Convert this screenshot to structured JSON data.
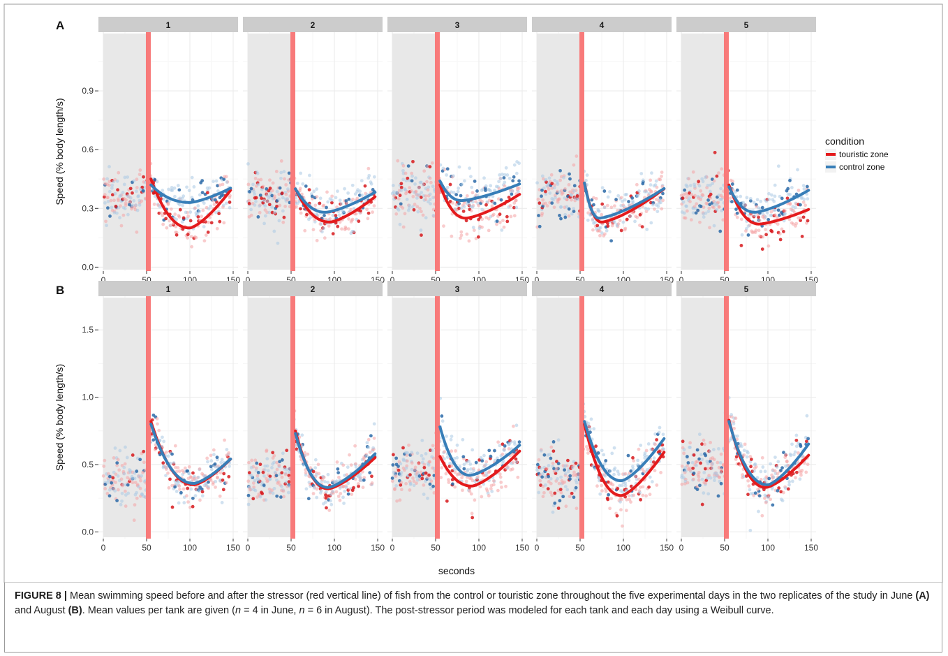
{
  "chart_data": {
    "type": "scatter",
    "facet_label": "seconds",
    "xlabel": "seconds",
    "stressor_x": 52,
    "pre_stressor_shading": [
      0,
      52
    ],
    "x_range": [
      0,
      150
    ],
    "x_ticks": [
      "0",
      "50",
      "100",
      "150"
    ],
    "legend": {
      "title": "condition",
      "placement": "right",
      "entries": [
        {
          "name": "touristic zone",
          "color": "#e41a1c"
        },
        {
          "name": "control zone",
          "color": "#377eb8"
        }
      ]
    },
    "rows": [
      {
        "label": "A",
        "ylabel": "Speed (% body length/s)",
        "ylim": [
          -0.02,
          1.2
        ],
        "y_ticks": [
          "0.0",
          "0.3",
          "0.6",
          "0.9"
        ],
        "y_tick_values": [
          0.0,
          0.3,
          0.6,
          0.9
        ],
        "facets": [
          {
            "day": "1",
            "pre_mean": 0.36,
            "pre_spread": 0.11,
            "touristic_fit": {
              "start": 0.45,
              "min": 0.2,
              "t_min": 100,
              "end": 0.41
            },
            "control_fit": {
              "start": 0.42,
              "min": 0.33,
              "t_min": 100,
              "end": 0.41
            }
          },
          {
            "day": "2",
            "pre_mean": 0.37,
            "pre_spread": 0.11,
            "touristic_fit": {
              "start": 0.4,
              "min": 0.23,
              "t_min": 95,
              "end": 0.37
            },
            "control_fit": {
              "start": 0.4,
              "min": 0.28,
              "t_min": 90,
              "end": 0.39
            }
          },
          {
            "day": "3",
            "pre_mean": 0.38,
            "pre_spread": 0.12,
            "touristic_fit": {
              "start": 0.42,
              "min": 0.25,
              "t_min": 85,
              "end": 0.38
            },
            "control_fit": {
              "start": 0.44,
              "min": 0.34,
              "t_min": 80,
              "end": 0.43
            }
          },
          {
            "day": "4",
            "pre_mean": 0.38,
            "pre_spread": 0.11,
            "touristic_fit": {
              "start": 0.43,
              "min": 0.23,
              "t_min": 75,
              "end": 0.41
            },
            "control_fit": {
              "start": 0.43,
              "min": 0.25,
              "t_min": 72,
              "end": 0.41
            }
          },
          {
            "day": "5",
            "pre_mean": 0.35,
            "pre_spread": 0.11,
            "touristic_fit": {
              "start": 0.42,
              "min": 0.22,
              "t_min": 90,
              "end": 0.3
            },
            "control_fit": {
              "start": 0.41,
              "min": 0.28,
              "t_min": 85,
              "end": 0.4
            }
          }
        ]
      },
      {
        "label": "B",
        "ylabel": "Speed (% body length/s)",
        "ylim": [
          -0.05,
          1.75
        ],
        "y_ticks": [
          "0.0",
          "0.5",
          "1.0",
          "1.5"
        ],
        "y_tick_values": [
          0.0,
          0.5,
          1.0,
          1.5
        ],
        "facets": [
          {
            "day": "1",
            "pre_mean": 0.4,
            "pre_spread": 0.17,
            "touristic_fit": {
              "start": 0.82,
              "min": 0.35,
              "t_min": 105,
              "end": 0.56
            },
            "control_fit": {
              "start": 0.8,
              "min": 0.36,
              "t_min": 105,
              "end": 0.56
            }
          },
          {
            "day": "2",
            "pre_mean": 0.4,
            "pre_spread": 0.15,
            "touristic_fit": {
              "start": 0.75,
              "min": 0.32,
              "t_min": 93,
              "end": 0.57
            },
            "control_fit": {
              "start": 0.73,
              "min": 0.33,
              "t_min": 93,
              "end": 0.6
            }
          },
          {
            "day": "3",
            "pre_mean": 0.45,
            "pre_spread": 0.17,
            "touristic_fit": {
              "start": 0.56,
              "min": 0.34,
              "t_min": 92,
              "end": 0.62
            },
            "control_fit": {
              "start": 0.78,
              "min": 0.42,
              "t_min": 90,
              "end": 0.66
            }
          },
          {
            "day": "4",
            "pre_mean": 0.42,
            "pre_spread": 0.18,
            "touristic_fit": {
              "start": 0.8,
              "min": 0.27,
              "t_min": 98,
              "end": 0.62
            },
            "control_fit": {
              "start": 0.82,
              "min": 0.38,
              "t_min": 98,
              "end": 0.72
            }
          },
          {
            "day": "5",
            "pre_mean": 0.48,
            "pre_spread": 0.18,
            "touristic_fit": {
              "start": 0.83,
              "min": 0.33,
              "t_min": 98,
              "end": 0.59
            },
            "control_fit": {
              "start": 0.82,
              "min": 0.35,
              "t_min": 100,
              "end": 0.68
            }
          }
        ]
      }
    ]
  },
  "caption": {
    "label": "FIGURE 8 |",
    "text_1": " Mean swimming speed before and after the stressor (red vertical line) of fish from the control or touristic zone throughout the five experimental days in the two replicates of the study in June ",
    "june_ref": "(A)",
    "text_2": " and August ",
    "august_ref": "(B)",
    "text_3": ". Mean values per tank are given (",
    "n_var_1": "n",
    "text_4": " = 4 in June, ",
    "n_var_2": "n",
    "text_5": " = 6 in August). The post-stressor period was modeled for each tank and each day using a Weibull curve."
  }
}
